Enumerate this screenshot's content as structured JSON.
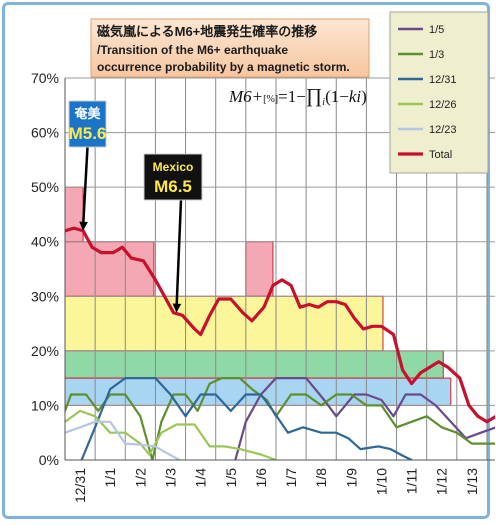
{
  "chart_data": {
    "type": "line",
    "title_lines": [
      "磁気嵐によるM6+地震発生確率の推移",
      "/Transition of the M6+ earthquake",
      "occurrence probability by a magnetic storm."
    ],
    "formula": "M6+[%]=1−∏i(1−ki)",
    "formula_parts": {
      "lhs": "M6+",
      "sub": "[%]",
      "rhs1": "=1−",
      "prod": "∏",
      "prod_sub": "i",
      "rhs2": "(1−",
      "k": "ki",
      "rhs3": ")"
    },
    "ylim": [
      0,
      70
    ],
    "yticks": [
      0,
      10,
      20,
      30,
      40,
      50,
      60,
      70
    ],
    "ytick_labels": [
      "0%",
      "10%",
      "20%",
      "30%",
      "40%",
      "50%",
      "60%",
      "70%"
    ],
    "xlim": [
      0,
      14.3
    ],
    "xticks": [
      0.5,
      1.5,
      2.5,
      3.5,
      4.5,
      5.5,
      6.5,
      7.5,
      8.5,
      9.5,
      10.5,
      11.5,
      12.5,
      13.5
    ],
    "xtick_labels": [
      "12/31",
      "1/1",
      "1/2",
      "1/3",
      "1/4",
      "1/5",
      "1/6",
      "1/7",
      "1/8",
      "1/9",
      "1/10",
      "1/11",
      "1/12",
      "1/13"
    ],
    "x_gridlines": [
      1,
      2,
      3,
      4,
      5,
      6,
      7,
      8,
      9,
      10,
      11,
      12,
      13,
      14
    ],
    "y_gridlines": [
      10,
      20,
      30,
      40,
      50,
      60,
      70
    ],
    "grid": true,
    "legend_position": "top-right",
    "bands": [
      {
        "x0": 0,
        "x1": 0.6,
        "y0": 40,
        "y1": 50,
        "color": "#f4a8b4"
      },
      {
        "x0": 0,
        "x1": 2.95,
        "y0": 30,
        "y1": 40,
        "color": "#f4a8b4"
      },
      {
        "x0": 6.0,
        "x1": 6.9,
        "y0": 30,
        "y1": 40,
        "color": "#f4a8b4"
      },
      {
        "x0": 0,
        "x1": 10.55,
        "y0": 20,
        "y1": 30,
        "color": "#fbf69a"
      },
      {
        "x0": 0,
        "x1": 12.55,
        "y0": 15,
        "y1": 20,
        "color": "#8fd9a6"
      },
      {
        "x0": 0,
        "x1": 12.8,
        "y0": 10,
        "y1": 15,
        "color": "#a8d6f2"
      }
    ],
    "series": [
      {
        "name": "1/5",
        "color": "#6a4a8a",
        "points": [
          [
            5.65,
            0
          ],
          [
            6.0,
            7
          ],
          [
            6.5,
            12
          ],
          [
            7.0,
            15
          ],
          [
            7.5,
            15
          ],
          [
            8.0,
            15
          ],
          [
            8.6,
            11
          ],
          [
            9.0,
            8
          ],
          [
            9.6,
            12
          ],
          [
            10.0,
            12
          ],
          [
            10.5,
            11
          ],
          [
            10.9,
            8
          ],
          [
            11.3,
            12
          ],
          [
            11.8,
            12
          ],
          [
            12.3,
            10
          ],
          [
            12.8,
            7
          ],
          [
            13.3,
            4
          ],
          [
            13.8,
            5
          ],
          [
            14.3,
            6
          ]
        ]
      },
      {
        "name": "1/3",
        "color": "#5e8f2e",
        "points": [
          [
            0,
            9
          ],
          [
            0.2,
            12
          ],
          [
            0.7,
            12
          ],
          [
            1.1,
            9
          ],
          [
            1.5,
            12
          ],
          [
            2.0,
            12
          ],
          [
            2.5,
            8
          ],
          [
            2.9,
            0
          ],
          [
            3.2,
            7
          ],
          [
            3.6,
            12
          ],
          [
            4.0,
            12
          ],
          [
            4.4,
            9
          ],
          [
            4.8,
            14
          ],
          [
            5.2,
            15
          ],
          [
            5.8,
            15
          ],
          [
            6.2,
            13
          ],
          [
            6.7,
            11
          ],
          [
            7.0,
            8
          ],
          [
            7.5,
            12
          ],
          [
            8.0,
            12
          ],
          [
            8.5,
            10
          ],
          [
            9.0,
            12
          ],
          [
            9.5,
            12
          ],
          [
            10.0,
            10
          ],
          [
            10.5,
            10
          ],
          [
            11.0,
            6
          ],
          [
            11.5,
            7
          ],
          [
            12.0,
            8
          ],
          [
            12.5,
            6
          ],
          [
            13.0,
            5
          ],
          [
            13.5,
            3
          ],
          [
            14.3,
            3
          ]
        ]
      },
      {
        "name": "12/31",
        "color": "#2f6797",
        "points": [
          [
            0.55,
            0
          ],
          [
            1.0,
            6
          ],
          [
            1.5,
            13
          ],
          [
            2.0,
            15
          ],
          [
            2.5,
            15
          ],
          [
            3.0,
            15
          ],
          [
            3.5,
            12
          ],
          [
            4.0,
            8
          ],
          [
            4.5,
            12
          ],
          [
            5.0,
            12
          ],
          [
            5.5,
            9
          ],
          [
            6.0,
            12
          ],
          [
            6.5,
            12
          ],
          [
            6.9,
            9
          ],
          [
            7.4,
            5
          ],
          [
            7.9,
            6
          ],
          [
            8.5,
            5
          ],
          [
            9.0,
            5
          ],
          [
            9.4,
            4
          ],
          [
            9.8,
            2
          ],
          [
            10.4,
            2.5
          ],
          [
            10.8,
            2
          ],
          [
            11.2,
            0.8
          ],
          [
            11.5,
            0
          ]
        ]
      },
      {
        "name": "12/26",
        "color": "#9bc558",
        "points": [
          [
            0,
            7
          ],
          [
            0.5,
            9
          ],
          [
            1.0,
            8
          ],
          [
            1.5,
            5
          ],
          [
            2.0,
            5
          ],
          [
            2.5,
            3
          ],
          [
            2.8,
            1
          ],
          [
            3.2,
            5
          ],
          [
            3.7,
            6.5
          ],
          [
            4.3,
            6.5
          ],
          [
            4.8,
            2.5
          ],
          [
            5.3,
            2.5
          ],
          [
            5.8,
            2
          ],
          [
            6.5,
            1
          ],
          [
            7.0,
            0
          ]
        ]
      },
      {
        "name": "12/23",
        "color": "#b4c6e4",
        "points": [
          [
            0,
            5
          ],
          [
            0.5,
            6
          ],
          [
            1.0,
            7
          ],
          [
            1.5,
            7
          ],
          [
            2.0,
            3
          ],
          [
            2.5,
            2.8
          ],
          [
            3.0,
            2.5
          ],
          [
            3.3,
            1.5
          ],
          [
            3.8,
            0
          ]
        ]
      },
      {
        "name": "Total",
        "color": "#c8102e",
        "points": [
          [
            0,
            42
          ],
          [
            0.3,
            42.5
          ],
          [
            0.6,
            42
          ],
          [
            0.9,
            39
          ],
          [
            1.2,
            38
          ],
          [
            1.6,
            38
          ],
          [
            1.9,
            39
          ],
          [
            2.2,
            37
          ],
          [
            2.6,
            36.5
          ],
          [
            3.0,
            33
          ],
          [
            3.3,
            30
          ],
          [
            3.6,
            27
          ],
          [
            3.9,
            26.5
          ],
          [
            4.3,
            24
          ],
          [
            4.5,
            23
          ],
          [
            4.8,
            26.5
          ],
          [
            5.1,
            29.5
          ],
          [
            5.5,
            29.5
          ],
          [
            5.9,
            27
          ],
          [
            6.2,
            25.5
          ],
          [
            6.6,
            28
          ],
          [
            6.9,
            32
          ],
          [
            7.2,
            33
          ],
          [
            7.5,
            32
          ],
          [
            7.8,
            28
          ],
          [
            8.1,
            28.5
          ],
          [
            8.4,
            28
          ],
          [
            8.7,
            29
          ],
          [
            9.0,
            29
          ],
          [
            9.3,
            28.5
          ],
          [
            9.6,
            26
          ],
          [
            9.9,
            24
          ],
          [
            10.2,
            24.5
          ],
          [
            10.5,
            24.5
          ],
          [
            10.9,
            23
          ],
          [
            11.2,
            16.5
          ],
          [
            11.5,
            14
          ],
          [
            11.8,
            16
          ],
          [
            12.1,
            17
          ],
          [
            12.4,
            18
          ],
          [
            12.7,
            17
          ],
          [
            13.1,
            15
          ],
          [
            13.4,
            10
          ],
          [
            13.7,
            8
          ],
          [
            14.0,
            7
          ],
          [
            14.3,
            8
          ]
        ]
      }
    ],
    "annotations": [
      {
        "line1": "奄美",
        "line2": "M5.6",
        "bg": "#1a75c8",
        "fg1": "#ffffff",
        "fg2": "#ffe94a",
        "x": 0.6,
        "y": 42
      },
      {
        "line1": "Mexico",
        "line2": "M6.5",
        "bg": "#111111",
        "fg1": "#ffe94a",
        "fg2": "#ffe94a",
        "x": 3.7,
        "y": 27
      }
    ]
  }
}
